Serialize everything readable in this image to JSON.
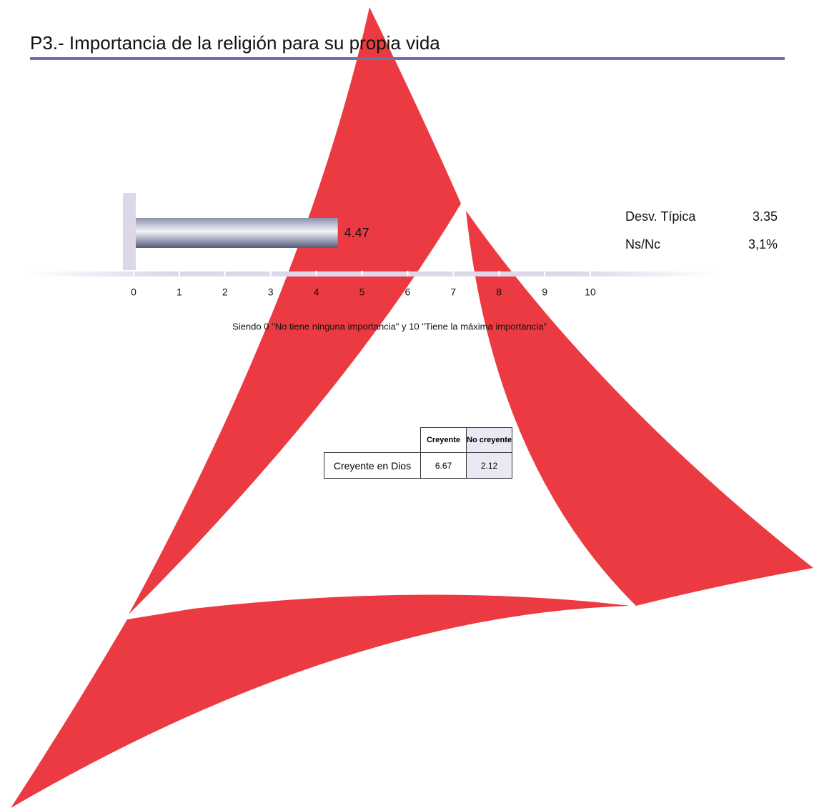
{
  "chart_data": {
    "type": "bar",
    "orientation": "horizontal",
    "title": "P3.- Importancia de la religión para su propia vida",
    "values": [
      4.47
    ],
    "xlim": [
      0,
      10
    ],
    "xticks": [
      0,
      1,
      2,
      3,
      4,
      5,
      6,
      7,
      8,
      9,
      10
    ],
    "annotation": "Siendo 0 \"No tiene ninguna importancia\" y 10 \"Tiene la máxima importancia”",
    "grid": false
  },
  "stats": [
    {
      "label": "Desv. Típica",
      "value": 3.35
    },
    {
      "label": "Ns/Nc",
      "value": "3,1%"
    }
  ],
  "table": {
    "columns": [
      "Creyente",
      "No creyente"
    ],
    "rows": [
      [
        "Creyente en Dios",
        6.67,
        2.12
      ]
    ]
  }
}
